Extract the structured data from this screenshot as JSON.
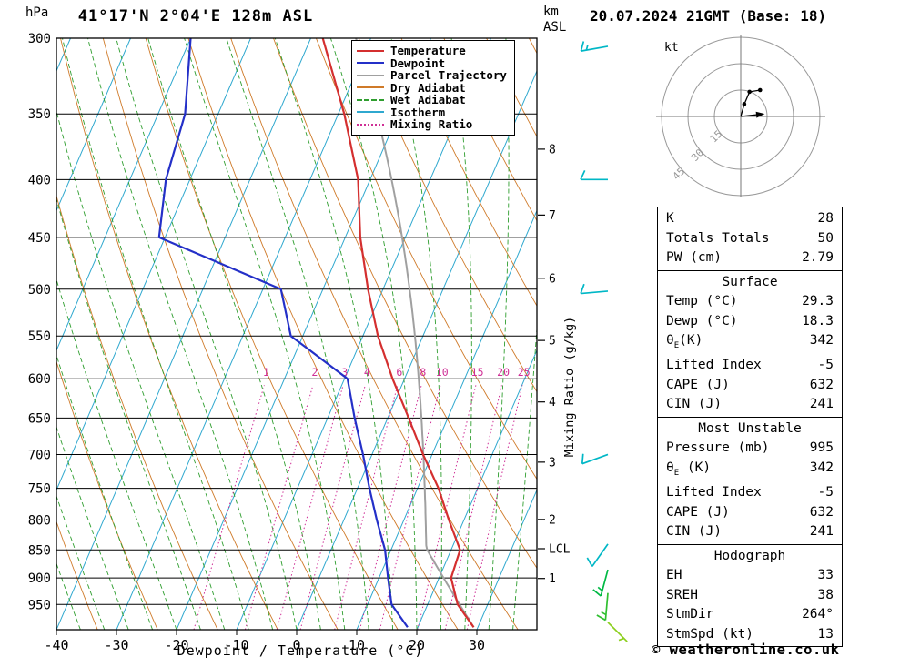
{
  "header": {
    "left_unit": "hPa",
    "station_title": "41°17'N 2°04'E 128m ASL",
    "km_label": "km",
    "asl_label": "ASL",
    "date_title": "20.07.2024 21GMT (Base: 18)"
  },
  "axes": {
    "pressure_ticks": [
      300,
      350,
      400,
      450,
      500,
      550,
      600,
      650,
      700,
      750,
      800,
      850,
      900,
      950
    ],
    "temp_ticks": [
      -40,
      -30,
      -20,
      -10,
      0,
      10,
      20,
      30
    ],
    "xlabel": "Dewpoint / Temperature (°C)",
    "right_label": "Mixing Ratio (g/kg)",
    "km_ticks": [
      {
        "km": 1,
        "p": 901
      },
      {
        "km": 2,
        "p": 799
      },
      {
        "km": 3,
        "p": 711
      },
      {
        "km": 4,
        "p": 629
      },
      {
        "km": 5,
        "p": 555
      },
      {
        "km": 6,
        "p": 489
      },
      {
        "km": 7,
        "p": 430
      },
      {
        "km": 8,
        "p": 376
      }
    ],
    "lcl": {
      "label": "LCL",
      "p": 848
    }
  },
  "legend": {
    "items": [
      {
        "label": "Temperature",
        "color": "#d42f2f",
        "style": "solid"
      },
      {
        "label": "Dewpoint",
        "color": "#2430c8",
        "style": "solid"
      },
      {
        "label": "Parcel Trajectory",
        "color": "#a0a0a0",
        "style": "solid"
      },
      {
        "label": "Dry Adiabat",
        "color": "#cf7a29",
        "style": "solid"
      },
      {
        "label": "Wet Adiabat",
        "color": "#2f9e2f",
        "style": "dashed"
      },
      {
        "label": "Isotherm",
        "color": "#2fa8cf",
        "style": "solid"
      },
      {
        "label": "Mixing Ratio",
        "color": "#cf2f96",
        "style": "dotted"
      }
    ]
  },
  "chart_data": {
    "type": "skewt-log-p-sounding",
    "pressure_axis_hPa": [
      300,
      1000
    ],
    "temp_axis_C": [
      -40,
      40
    ],
    "isotherm_step_C": 10,
    "dry_adiabat_step_K": 10,
    "wet_adiabat_step_C": 4,
    "mixing_ratio_lines_gkg": [
      1,
      2,
      3,
      4,
      6,
      8,
      10,
      15,
      20,
      25
    ],
    "temperature_profile": {
      "pressure_hPa": [
        995,
        950,
        900,
        850,
        800,
        750,
        700,
        650,
        600,
        550,
        500,
        450,
        400,
        350,
        300
      ],
      "temp_C": [
        29.3,
        25.0,
        22.0,
        21.5,
        17.5,
        13.5,
        8.5,
        3.5,
        -2.0,
        -7.5,
        -12.5,
        -17.5,
        -22.0,
        -29.0,
        -38.0
      ]
    },
    "dewpoint_profile": {
      "pressure_hPa": [
        995,
        950,
        900,
        850,
        800,
        750,
        700,
        650,
        600,
        550,
        500,
        450,
        400,
        350,
        300
      ],
      "temp_C": [
        18.3,
        14.0,
        11.5,
        9.0,
        5.5,
        2.0,
        -1.5,
        -5.5,
        -9.5,
        -22.0,
        -27.0,
        -51.0,
        -54.0,
        -55.5,
        -60.0
      ]
    },
    "parcel": {
      "surface_pressure_hPa": 995,
      "surface_temp_C": 29.3,
      "surface_dewp_C": 18.3
    },
    "winds": [
      {
        "p": 305,
        "dir_deg": 260,
        "speed_kt": 15,
        "color": "#00b7c6"
      },
      {
        "p": 400,
        "dir_deg": 270,
        "speed_kt": 10,
        "color": "#00b7c6"
      },
      {
        "p": 502,
        "dir_deg": 265,
        "speed_kt": 10,
        "color": "#00b7c6"
      },
      {
        "p": 700,
        "dir_deg": 250,
        "speed_kt": 10,
        "color": "#00b7c6"
      },
      {
        "p": 840,
        "dir_deg": 215,
        "speed_kt": 10,
        "color": "#00b7c6"
      },
      {
        "p": 885,
        "dir_deg": 195,
        "speed_kt": 15,
        "color": "#00b944"
      },
      {
        "p": 928,
        "dir_deg": 185,
        "speed_kt": 15,
        "color": "#2fbf2f"
      },
      {
        "p": 985,
        "dir_deg": 135,
        "speed_kt": 5,
        "color": "#8ccf1e"
      }
    ]
  },
  "hodograph": {
    "unit_label": "kt",
    "rings_kt": [
      15,
      30,
      45
    ],
    "trace_kt": [
      [
        0,
        0
      ],
      [
        2,
        7
      ],
      [
        5,
        14
      ],
      [
        11,
        15
      ]
    ],
    "storm_motion_kt": {
      "u": 12.9,
      "v": 1.4,
      "dir_deg": 264,
      "speed_kt": 13
    }
  },
  "table": {
    "sections": [
      {
        "header": null,
        "rows": [
          [
            "K",
            "28"
          ],
          [
            "Totals Totals",
            "50"
          ],
          [
            "PW (cm)",
            "2.79"
          ]
        ]
      },
      {
        "header": "Surface",
        "rows": [
          [
            "Temp (°C)",
            "29.3"
          ],
          [
            "Dewp (°C)",
            "18.3"
          ],
          [
            "θ_E(K)",
            "342"
          ],
          [
            "Lifted Index",
            "-5"
          ],
          [
            "CAPE (J)",
            "632"
          ],
          [
            "CIN (J)",
            "241"
          ]
        ]
      },
      {
        "header": "Most Unstable",
        "rows": [
          [
            "Pressure (mb)",
            "995"
          ],
          [
            "θ_E (K)",
            "342"
          ],
          [
            "Lifted Index",
            "-5"
          ],
          [
            "CAPE (J)",
            "632"
          ],
          [
            "CIN (J)",
            "241"
          ]
        ]
      },
      {
        "header": "Hodograph",
        "rows": [
          [
            "EH",
            "33"
          ],
          [
            "SREH",
            "38"
          ],
          [
            "StmDir",
            "264°"
          ],
          [
            "StmSpd (kt)",
            "13"
          ]
        ]
      }
    ]
  },
  "footer": {
    "copyright": "© weatheronline.co.uk"
  },
  "colors": {
    "temperature": "#d42f2f",
    "dewpoint": "#2430c8",
    "parcel": "#a0a0a0",
    "dry_adiabat": "#cf7a29",
    "wet_adiabat": "#2f9e2f",
    "isotherm": "#2fa8cf",
    "mixing_ratio": "#cf2f96",
    "grid": "#000000",
    "hodo_ring": "#999999"
  }
}
